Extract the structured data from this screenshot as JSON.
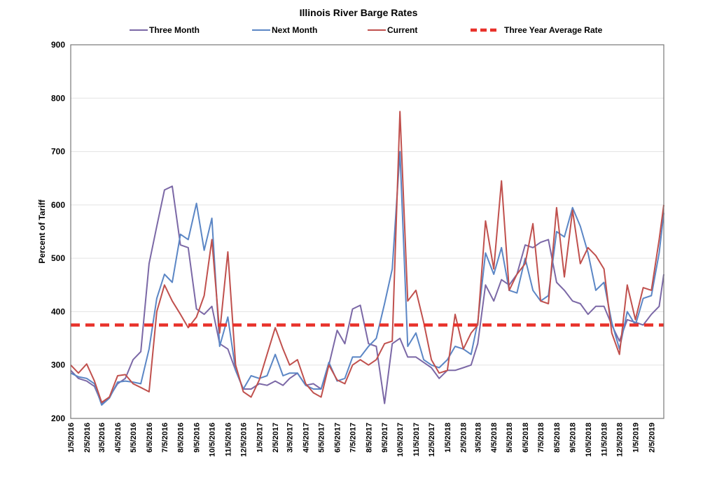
{
  "chart_data": {
    "type": "line",
    "title": "Illinois River Barge Rates",
    "xlabel": "",
    "ylabel": "Percent of Tariff",
    "ylim": [
      200,
      900
    ],
    "yticks": [
      "200",
      "300",
      "400",
      "500",
      "600",
      "700",
      "800",
      "900"
    ],
    "xlim": [
      "2016-01-05",
      "2019-03-01"
    ],
    "xticks": [
      "1/5/2016",
      "2/5/2016",
      "3/5/2016",
      "4/5/2016",
      "5/5/2016",
      "6/5/2016",
      "7/5/2016",
      "8/5/2016",
      "9/5/2016",
      "10/5/2016",
      "11/5/2016",
      "12/5/2016",
      "1/5/2017",
      "2/5/2017",
      "3/5/2017",
      "4/5/2017",
      "5/5/2017",
      "6/5/2017",
      "7/5/2017",
      "8/5/2017",
      "9/5/2017",
      "10/5/2017",
      "11/5/2017",
      "12/5/2017",
      "1/5/2018",
      "2/5/2018",
      "3/5/2018",
      "4/5/2018",
      "5/5/2018",
      "6/5/2018",
      "7/5/2018",
      "8/5/2018",
      "9/5/2018",
      "10/5/2018",
      "11/5/2018",
      "12/5/2018",
      "1/5/2019",
      "2/5/2019"
    ],
    "grid": true,
    "legend_position": "top",
    "x": [
      "2016-01-05",
      "2016-01-20",
      "2016-02-05",
      "2016-02-20",
      "2016-03-05",
      "2016-03-20",
      "2016-04-05",
      "2016-04-20",
      "2016-05-05",
      "2016-05-20",
      "2016-06-05",
      "2016-06-20",
      "2016-07-05",
      "2016-07-20",
      "2016-08-05",
      "2016-08-20",
      "2016-09-05",
      "2016-09-20",
      "2016-10-05",
      "2016-10-20",
      "2016-11-05",
      "2016-11-20",
      "2016-12-05",
      "2016-12-20",
      "2017-01-05",
      "2017-01-20",
      "2017-02-05",
      "2017-02-20",
      "2017-03-05",
      "2017-03-20",
      "2017-04-05",
      "2017-04-20",
      "2017-05-05",
      "2017-05-20",
      "2017-06-05",
      "2017-06-20",
      "2017-07-05",
      "2017-07-20",
      "2017-08-05",
      "2017-08-20",
      "2017-09-05",
      "2017-09-20",
      "2017-10-05",
      "2017-10-20",
      "2017-11-05",
      "2017-11-20",
      "2017-12-05",
      "2017-12-20",
      "2018-01-05",
      "2018-01-20",
      "2018-02-05",
      "2018-02-20",
      "2018-03-05",
      "2018-03-20",
      "2018-04-05",
      "2018-04-20",
      "2018-05-05",
      "2018-05-20",
      "2018-06-05",
      "2018-06-20",
      "2018-07-05",
      "2018-07-20",
      "2018-08-05",
      "2018-08-20",
      "2018-09-05",
      "2018-09-20",
      "2018-10-05",
      "2018-10-20",
      "2018-11-05",
      "2018-11-20",
      "2018-12-05",
      "2018-12-20",
      "2019-01-05",
      "2019-01-20",
      "2019-02-05",
      "2019-02-20",
      "2019-03-01"
    ],
    "series": [
      {
        "name": "Three Month",
        "color": "#7b68a6",
        "style": "solid",
        "values": [
          290,
          275,
          270,
          260,
          228,
          240,
          265,
          275,
          310,
          325,
          490,
          560,
          628,
          635,
          525,
          520,
          405,
          395,
          410,
          340,
          330,
          290,
          255,
          255,
          265,
          262,
          270,
          262,
          275,
          285,
          262,
          265,
          255,
          300,
          365,
          340,
          405,
          412,
          340,
          335,
          228,
          340,
          350,
          315,
          315,
          305,
          295,
          275,
          290,
          290,
          295,
          300,
          340,
          450,
          420,
          460,
          450,
          470,
          525,
          520,
          530,
          535,
          455,
          440,
          420,
          415,
          395,
          410,
          410,
          375,
          345,
          385,
          380,
          375,
          395,
          410,
          470
        ]
      },
      {
        "name": "Next Month",
        "color": "#5b86c5",
        "style": "solid",
        "values": [
          285,
          278,
          275,
          265,
          225,
          238,
          268,
          270,
          268,
          265,
          330,
          425,
          470,
          455,
          545,
          535,
          603,
          515,
          575,
          335,
          390,
          290,
          255,
          280,
          275,
          280,
          320,
          280,
          285,
          285,
          262,
          255,
          255,
          305,
          270,
          275,
          315,
          315,
          335,
          350,
          415,
          480,
          700,
          335,
          360,
          310,
          300,
          295,
          310,
          335,
          330,
          320,
          380,
          510,
          470,
          520,
          440,
          435,
          500,
          440,
          420,
          430,
          550,
          540,
          595,
          560,
          510,
          440,
          455,
          380,
          330,
          400,
          375,
          425,
          430,
          510,
          585
        ]
      },
      {
        "name": "Current",
        "color": "#c0504d",
        "style": "solid",
        "values": [
          300,
          285,
          302,
          270,
          230,
          240,
          280,
          282,
          265,
          258,
          250,
          400,
          450,
          420,
          395,
          370,
          390,
          430,
          535,
          360,
          512,
          300,
          250,
          240,
          272,
          320,
          370,
          330,
          300,
          310,
          265,
          248,
          240,
          300,
          272,
          265,
          300,
          310,
          300,
          310,
          340,
          345,
          775,
          420,
          440,
          380,
          310,
          285,
          290,
          395,
          330,
          360,
          375,
          570,
          480,
          645,
          440,
          470,
          490,
          565,
          420,
          415,
          595,
          465,
          590,
          490,
          520,
          505,
          480,
          360,
          320,
          450,
          385,
          445,
          440,
          535,
          600
        ]
      },
      {
        "name": "Three Year Average Rate",
        "color": "#e8312a",
        "style": "dashed",
        "constant": 375
      }
    ]
  }
}
